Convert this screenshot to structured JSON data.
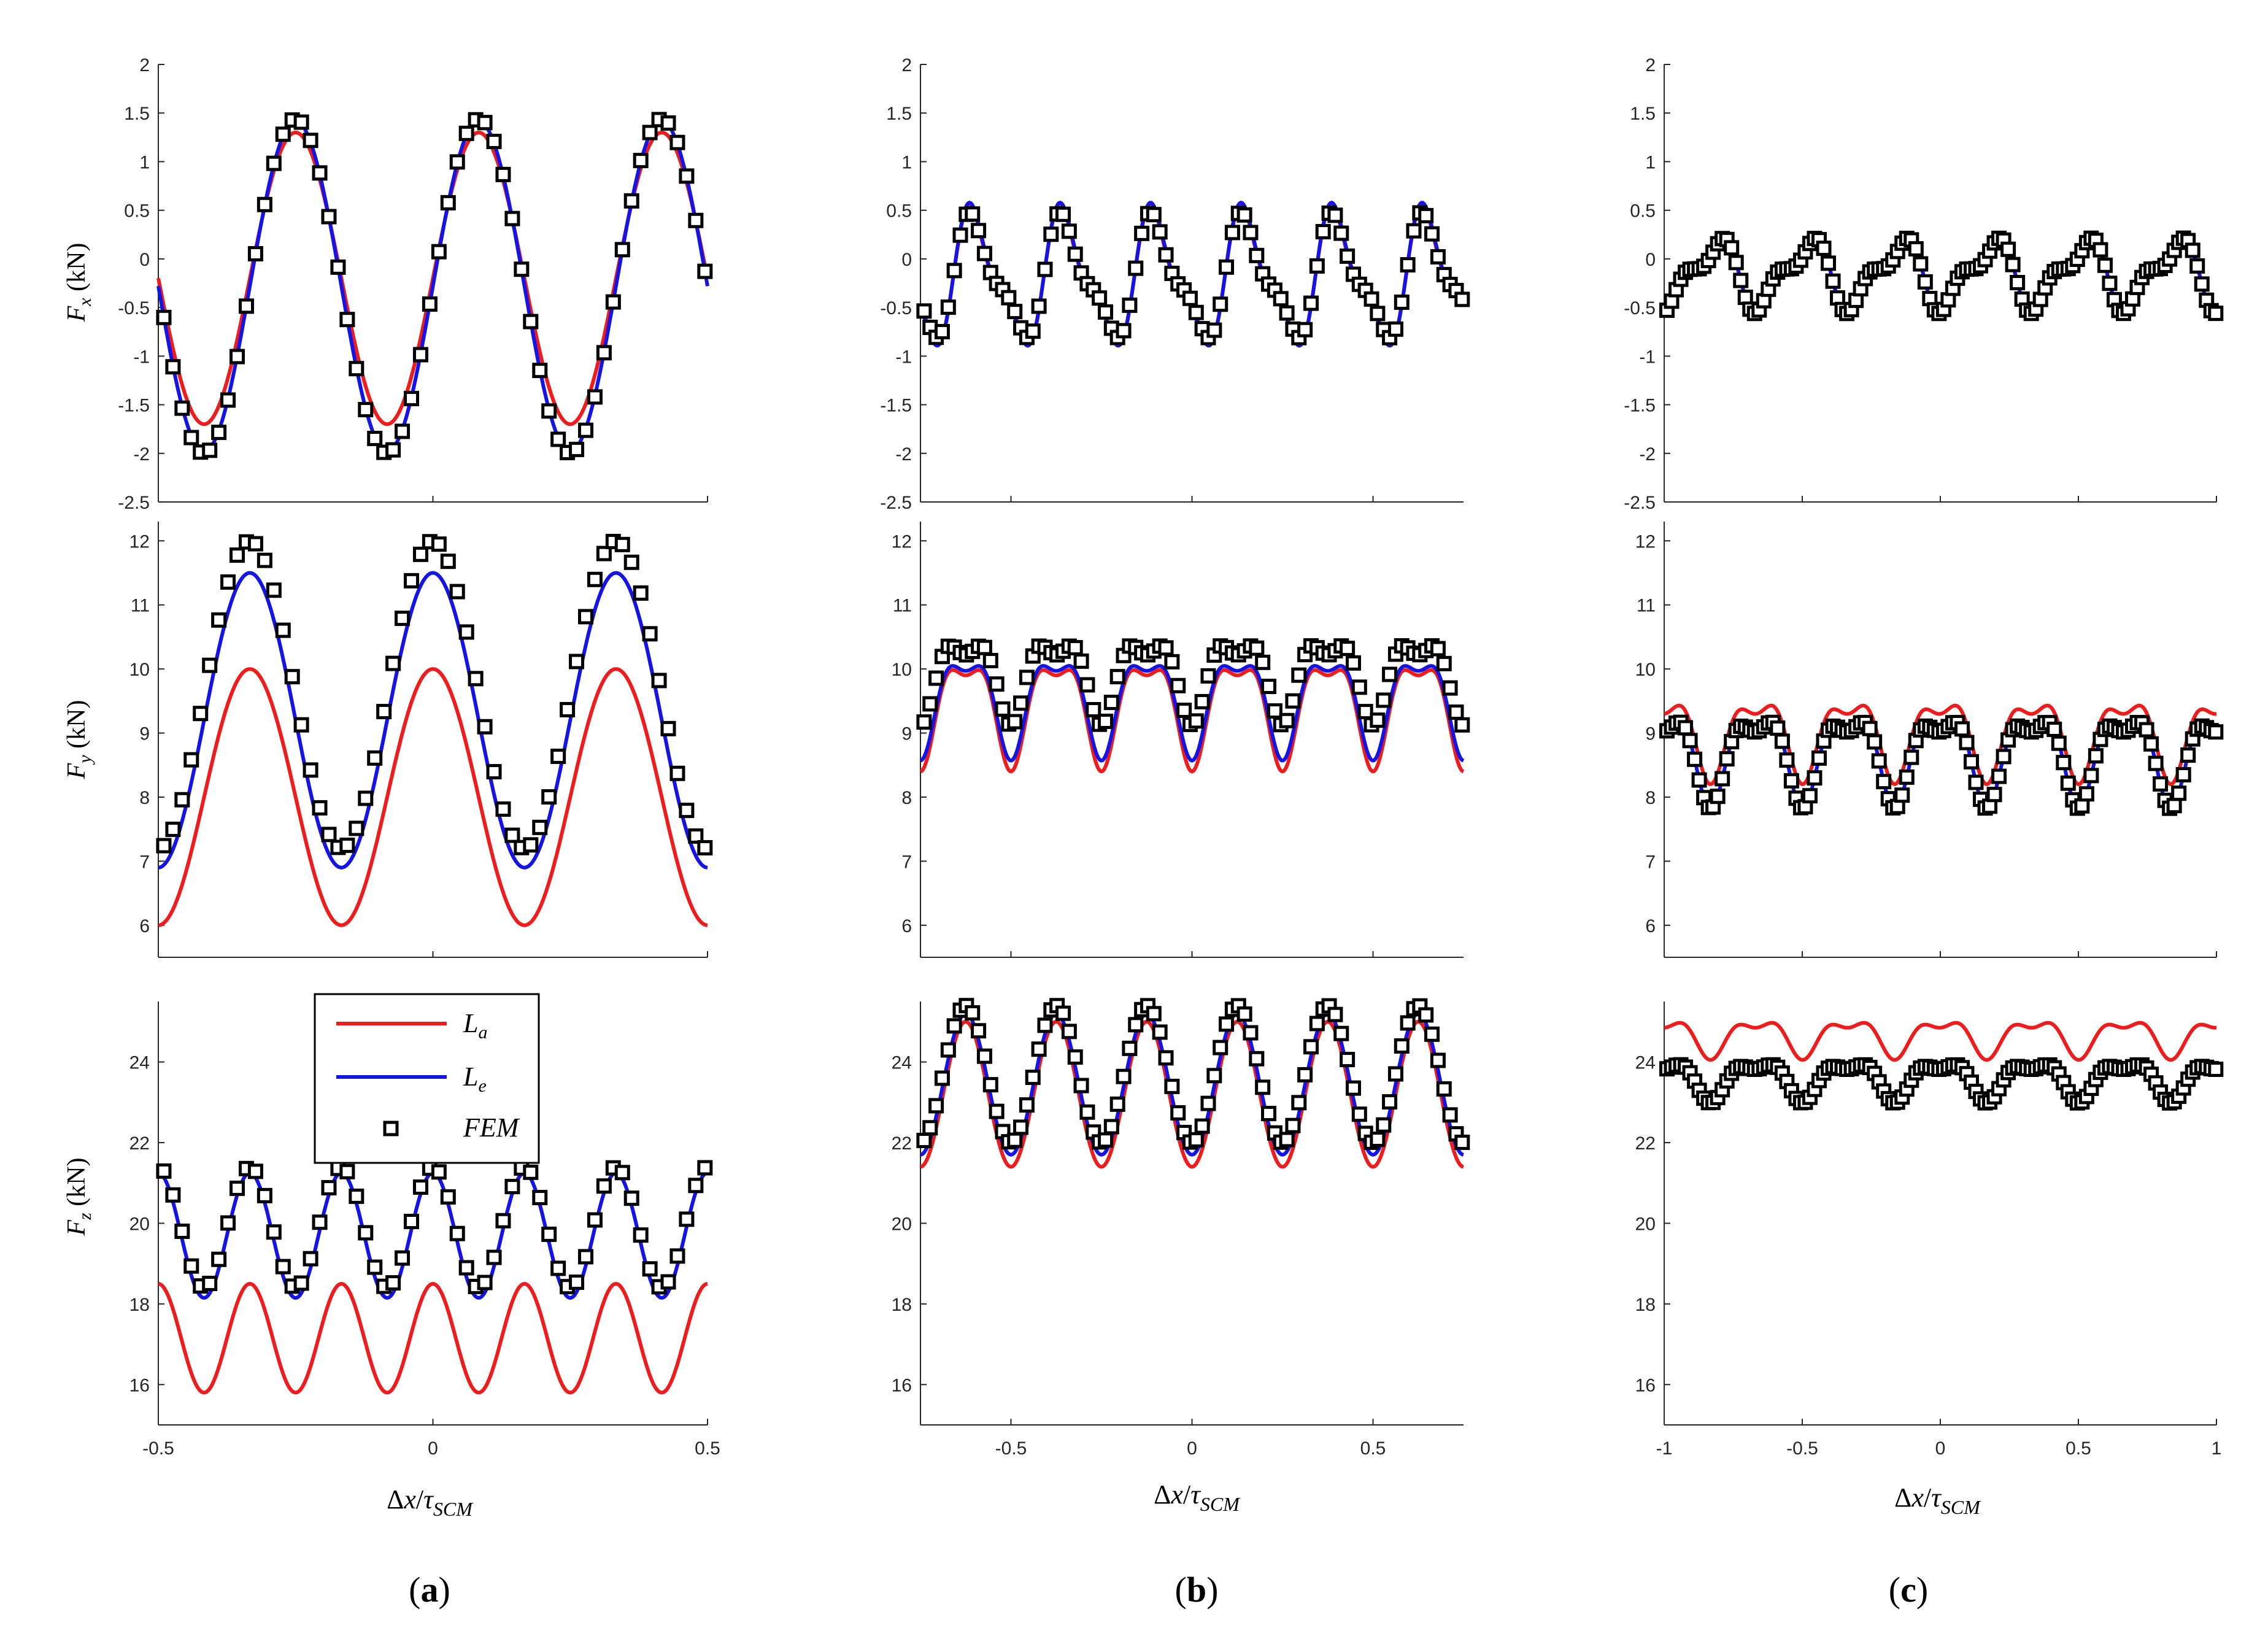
{
  "figure": {
    "captions": [
      "(a)",
      "(b)",
      "(c)"
    ],
    "captions_text": {
      "a": {
        "open": "(",
        "letter": "a",
        "close": ")"
      },
      "b": {
        "open": "(",
        "letter": "b",
        "close": ")"
      },
      "c": {
        "open": "(",
        "letter": "c",
        "close": ")"
      }
    },
    "x_axis_label": "Δx/τSCM",
    "x_axis_label_parts": {
      "delta": "Δ",
      "x": "x",
      "slash": "/",
      "tau": "τ",
      "sub": "SCM"
    },
    "y_axis_labels": {
      "fx": {
        "sym": "F",
        "sub": "x",
        "unit": " (kN)",
        "full": "Fx (kN)"
      },
      "fy": {
        "sym": "F",
        "sub": "y",
        "unit": " (kN)",
        "full": "Fy (kN)"
      },
      "fz": {
        "sym": "F",
        "sub": "z",
        "unit": " (kN)",
        "full": "Fz (kN)"
      }
    },
    "legend": {
      "entries": [
        {
          "sym": "L",
          "sub": "a",
          "name": "La",
          "color": "#ee1c1c"
        },
        {
          "sym": "L",
          "sub": "e",
          "name": "Le",
          "color": "#1414e6"
        },
        {
          "sym": "FEM",
          "sub": "",
          "name": "FEM",
          "color": "#000000"
        }
      ],
      "placement": "panel (a), Fz, top-left"
    },
    "colors": {
      "La": "#ee1c1c",
      "Le": "#1414e6",
      "FEM": "#000000",
      "axes": "#262626"
    }
  },
  "chart_data": [
    {
      "id": "a-fx",
      "type": "line",
      "column": "a",
      "row": "fx",
      "xlim": [
        -0.5,
        0.5
      ],
      "ylim": [
        -2.5,
        2
      ],
      "xticks": [],
      "yticks": [
        "-2.5",
        "-2",
        "-1.5",
        "-1",
        "-0.5",
        "0",
        "0.5",
        "1",
        "1.5",
        "2"
      ],
      "ylabel": "Fx (kN)",
      "series": [
        {
          "name": "La",
          "model": {
            "base": -0.2,
            "terms": [
              [
                1.5,
                3,
                -0.25
              ]
            ]
          }
        },
        {
          "name": "Le",
          "model": {
            "base": -0.28,
            "terms": [
              [
                1.7,
                3,
                -0.25
              ]
            ]
          }
        },
        {
          "name": "FEM",
          "model": {
            "base": -0.28,
            "terms": [
              [
                1.72,
                3,
                -0.25
              ]
            ]
          },
          "markers": {
            "start": -0.49,
            "step": 0.0167
          }
        }
      ]
    },
    {
      "id": "a-fy",
      "type": "line",
      "column": "a",
      "row": "fy",
      "xlim": [
        -0.5,
        0.5
      ],
      "ylim": [
        5.5,
        12.3
      ],
      "xticks": [],
      "yticks": [
        "6",
        "7",
        "8",
        "9",
        "10",
        "11",
        "12"
      ],
      "ylabel": "Fy (kN)",
      "series": [
        {
          "name": "La",
          "model": {
            "base": 8.0,
            "terms": [
              [
                2.0,
                3,
                0
              ]
            ]
          }
        },
        {
          "name": "Le",
          "model": {
            "base": 9.2,
            "terms": [
              [
                2.3,
                3,
                0
              ]
            ]
          }
        },
        {
          "name": "FEM",
          "model": {
            "base": 9.6,
            "terms": [
              [
                2.4,
                3,
                0
              ]
            ]
          },
          "markers": {
            "start": -0.49,
            "step": 0.0167
          }
        }
      ]
    },
    {
      "id": "a-fz",
      "type": "line",
      "column": "a",
      "row": "fz",
      "xlim": [
        -0.5,
        0.5
      ],
      "ylim": [
        15,
        25.5
      ],
      "xticks": [
        "-0.5",
        "0",
        "0.5"
      ],
      "yticks": [
        "16",
        "18",
        "20",
        "22",
        "24"
      ],
      "ylabel": "Fz (kN)",
      "xlabel": "Δx/τSCM",
      "series": [
        {
          "name": "La",
          "model": {
            "base": 17.15,
            "terms": [
              [
                1.35,
                6,
                0
              ]
            ]
          }
        },
        {
          "name": "Le",
          "model": {
            "base": 19.7,
            "terms": [
              [
                1.55,
                6,
                0
              ]
            ]
          }
        },
        {
          "name": "FEM",
          "model": {
            "base": 19.9,
            "terms": [
              [
                1.5,
                6,
                0
              ]
            ]
          },
          "markers": {
            "start": -0.49,
            "step": 0.0167
          }
        }
      ]
    },
    {
      "id": "b-fx",
      "type": "line",
      "column": "b",
      "row": "fx",
      "xlim": [
        -0.75,
        0.75
      ],
      "ylim": [
        -2.5,
        2
      ],
      "xticks": [],
      "yticks": [
        "-2.5",
        "-2",
        "-1.5",
        "-1",
        "-0.5",
        "0",
        "0.5",
        "1",
        "1.5",
        "2"
      ],
      "series": [
        {
          "name": "La",
          "model": {
            "base": -0.2,
            "terms": [
              [
                0.6,
                4,
                -0.1
              ],
              [
                0.22,
                8,
                0.0
              ]
            ]
          }
        },
        {
          "name": "Le",
          "model": {
            "base": -0.2,
            "terms": [
              [
                0.63,
                4,
                -0.1
              ],
              [
                0.22,
                8,
                0.0
              ]
            ]
          }
        },
        {
          "name": "FEM",
          "model": {
            "base": -0.2,
            "terms": [
              [
                0.55,
                4,
                -0.1
              ],
              [
                0.2,
                8,
                0.0
              ]
            ]
          },
          "markers": {
            "start": -0.74,
            "step": 0.0167
          }
        }
      ]
    },
    {
      "id": "b-fy",
      "type": "line",
      "column": "b",
      "row": "fy",
      "xlim": [
        -0.75,
        0.75
      ],
      "ylim": [
        5.5,
        12.3
      ],
      "xticks": [],
      "yticks": [
        "6",
        "7",
        "8",
        "9",
        "10",
        "11",
        "12"
      ],
      "series": [
        {
          "name": "La",
          "model": {
            "base": 9.45,
            "terms": [
              [
                -0.75,
                4,
                0
              ],
              [
                -0.3,
                8,
                0
              ]
            ]
          }
        },
        {
          "name": "Le",
          "model": {
            "base": 9.55,
            "terms": [
              [
                -0.7,
                4,
                0
              ],
              [
                -0.28,
                8,
                0
              ]
            ]
          }
        },
        {
          "name": "FEM",
          "model": {
            "base": 9.95,
            "terms": [
              [
                -0.55,
                4,
                0
              ],
              [
                -0.28,
                8,
                0
              ]
            ]
          },
          "markers": {
            "start": -0.74,
            "step": 0.0167
          }
        }
      ]
    },
    {
      "id": "b-fz",
      "type": "line",
      "column": "b",
      "row": "fz",
      "xlim": [
        -0.75,
        0.75
      ],
      "ylim": [
        15,
        25.5
      ],
      "xticks": [
        "-0.5",
        "0",
        "0.5"
      ],
      "yticks": [
        "16",
        "18",
        "20",
        "22",
        "24"
      ],
      "xlabel": "Δx/τSCM",
      "series": [
        {
          "name": "La",
          "model": {
            "base": 23.2,
            "terms": [
              [
                -1.8,
                4,
                0
              ]
            ]
          }
        },
        {
          "name": "Le",
          "model": {
            "base": 23.45,
            "terms": [
              [
                -1.75,
                4,
                0
              ]
            ]
          }
        },
        {
          "name": "FEM",
          "model": {
            "base": 23.7,
            "terms": [
              [
                -1.7,
                4,
                0
              ]
            ]
          },
          "markers": {
            "start": -0.74,
            "step": 0.0167
          }
        }
      ]
    },
    {
      "id": "c-fx",
      "type": "line",
      "column": "c",
      "row": "fx",
      "xlim": [
        -1,
        1
      ],
      "ylim": [
        -2.5,
        2
      ],
      "xticks": [],
      "yticks": [
        "-2.5",
        "-2",
        "-1.5",
        "-1",
        "-0.5",
        "0",
        "0.5",
        "1",
        "1.5",
        "2"
      ],
      "series": [
        {
          "name": "La",
          "model": {
            "base": -0.15,
            "terms": [
              [
                0.3,
                3,
                -0.15
              ],
              [
                0.15,
                6,
                -0.1
              ]
            ]
          }
        },
        {
          "name": "Le",
          "model": {
            "base": -0.15,
            "terms": [
              [
                0.3,
                3,
                -0.15
              ],
              [
                0.15,
                6,
                -0.1
              ]
            ]
          }
        },
        {
          "name": "FEM",
          "model": {
            "base": -0.15,
            "terms": [
              [
                0.3,
                3,
                -0.15
              ],
              [
                0.15,
                6,
                -0.1
              ]
            ]
          },
          "markers": {
            "start": -0.99,
            "step": 0.0167
          }
        }
      ]
    },
    {
      "id": "c-fy",
      "type": "line",
      "column": "c",
      "row": "fy",
      "xlim": [
        -1,
        1
      ],
      "ylim": [
        5.5,
        12.3
      ],
      "xticks": [],
      "yticks": [
        "6",
        "7",
        "8",
        "9",
        "10",
        "11",
        "12"
      ],
      "series": [
        {
          "name": "La",
          "model": {
            "base": 9.0,
            "terms": [
              [
                0.55,
                3,
                -0.33
              ],
              [
                -0.25,
                6,
                0
              ]
            ]
          }
        },
        {
          "name": "Le",
          "model": {
            "base": 8.7,
            "terms": [
              [
                0.6,
                3,
                -0.33
              ],
              [
                -0.28,
                6,
                0
              ]
            ]
          }
        },
        {
          "name": "FEM",
          "model": {
            "base": 8.7,
            "terms": [
              [
                0.6,
                3,
                -0.33
              ],
              [
                -0.28,
                6,
                0
              ]
            ]
          },
          "markers": {
            "start": -0.99,
            "step": 0.0167
          }
        }
      ]
    },
    {
      "id": "c-fz",
      "type": "line",
      "column": "c",
      "row": "fz",
      "xlim": [
        -1,
        1
      ],
      "ylim": [
        15,
        25.5
      ],
      "xticks": [
        "-1",
        "-0.5",
        "0",
        "0.5",
        "1"
      ],
      "yticks": [
        "16",
        "18",
        "20",
        "22",
        "24"
      ],
      "xlabel": "Δx/τSCM",
      "series": [
        {
          "name": "La",
          "model": {
            "base": 24.65,
            "terms": [
              [
                0.4,
                3,
                -0.33
              ],
              [
                -0.2,
                6,
                0
              ]
            ]
          }
        },
        {
          "name": "Le",
          "model": {
            "base": 23.6,
            "terms": [
              [
                0.42,
                3,
                -0.33
              ],
              [
                -0.2,
                6,
                0
              ]
            ]
          }
        },
        {
          "name": "FEM",
          "model": {
            "base": 23.6,
            "terms": [
              [
                0.42,
                3,
                -0.33
              ],
              [
                -0.2,
                6,
                0
              ]
            ]
          },
          "markers": {
            "start": -0.99,
            "step": 0.0167
          }
        }
      ]
    }
  ]
}
